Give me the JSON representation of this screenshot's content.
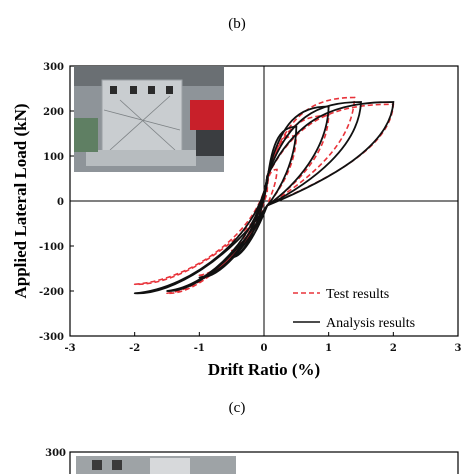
{
  "panels": {
    "b": "(b)",
    "c": "(c)"
  },
  "chart_data": [
    {
      "type": "line",
      "panel": "(b)",
      "xlabel": "Drift Ratio (%)",
      "ylabel": "Applied Lateral Load (kN)",
      "xlim": [
        -3,
        3
      ],
      "ylim": [
        -300,
        300
      ],
      "xticks": [
        "-3",
        "-2",
        "-1",
        "0",
        "1",
        "2",
        "3"
      ],
      "yticks": [
        "300",
        "200",
        "100",
        "0",
        "-100",
        "-200",
        "-300"
      ],
      "series": [
        {
          "name": "Test results",
          "style": "dashed",
          "color": "#e8333a",
          "peaks": [
            {
              "x": 0.2,
              "y": 70
            },
            {
              "x": -0.2,
              "y": -60
            },
            {
              "x": 0.5,
              "y": 145
            },
            {
              "x": -0.5,
              "y": -110
            },
            {
              "x": 1.0,
              "y": 190
            },
            {
              "x": -1.0,
              "y": -165
            },
            {
              "x": 1.4,
              "y": 230
            },
            {
              "x": -1.5,
              "y": -205
            },
            {
              "x": 2.0,
              "y": 215
            },
            {
              "x": -2.0,
              "y": -185
            }
          ]
        },
        {
          "name": "Analysis results",
          "style": "solid",
          "color": "#111111",
          "peaks": [
            {
              "x": 0.5,
              "y": 165
            },
            {
              "x": -0.5,
              "y": -125
            },
            {
              "x": 1.0,
              "y": 210
            },
            {
              "x": -1.0,
              "y": -170
            },
            {
              "x": 1.5,
              "y": 220
            },
            {
              "x": -1.5,
              "y": -200
            },
            {
              "x": 2.0,
              "y": 220
            },
            {
              "x": -2.0,
              "y": -205
            }
          ]
        }
      ],
      "legend": {
        "position": "bottom-right",
        "entries": [
          "Test results",
          "Analysis results"
        ]
      },
      "grid": false
    },
    {
      "type": "line",
      "panel": "(c)",
      "yticks": [
        "300"
      ],
      "partial": true
    }
  ]
}
